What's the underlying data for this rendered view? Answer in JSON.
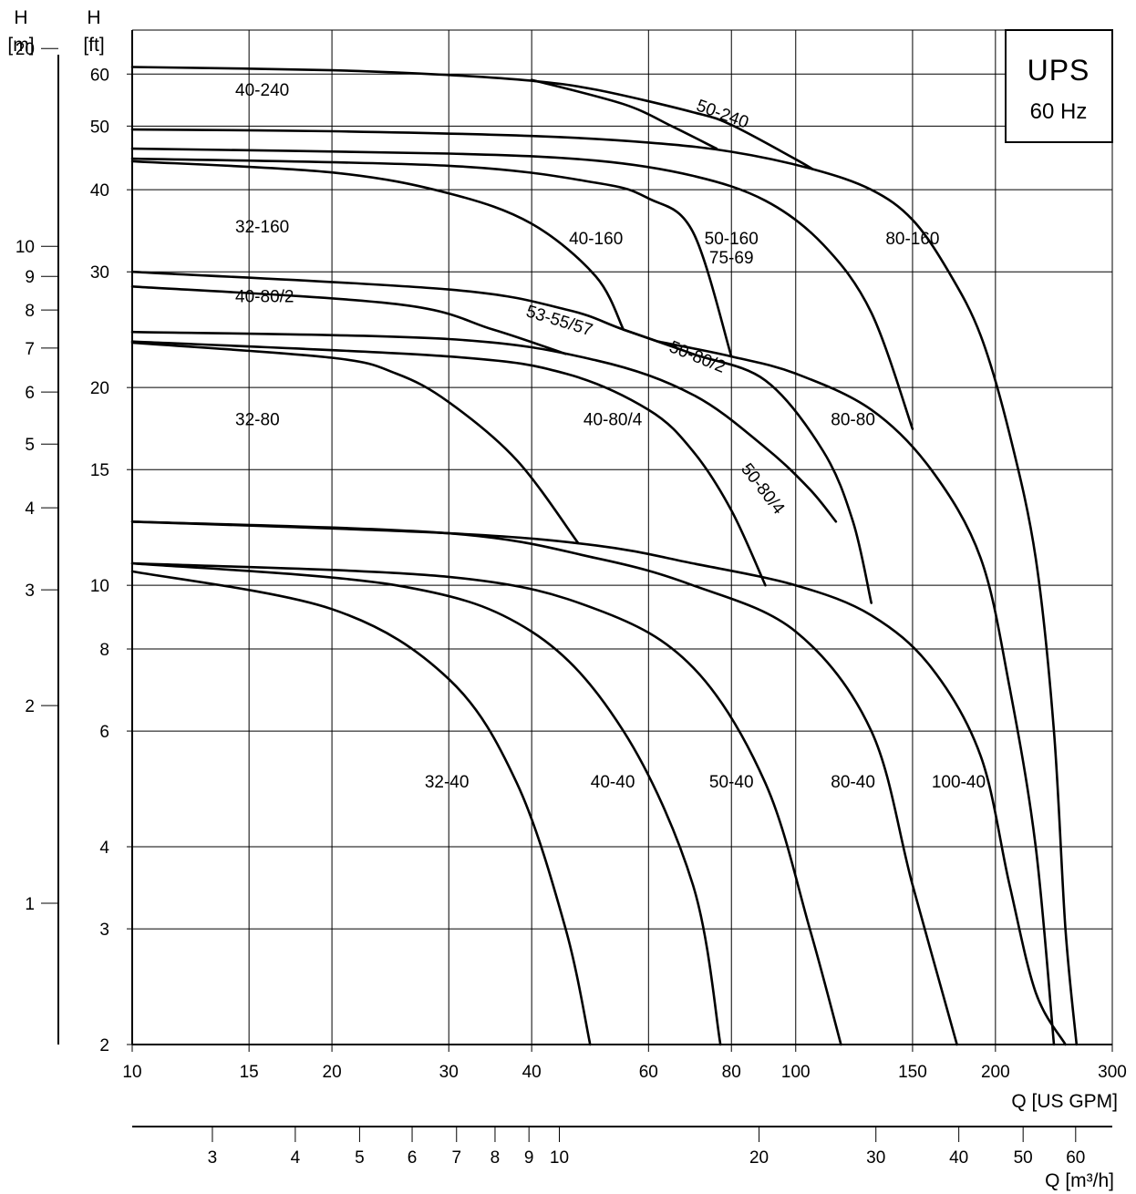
{
  "chart_data": {
    "type": "line",
    "badge": {
      "title": "UPS",
      "subtitle": "60 Hz"
    },
    "axes": {
      "x_gpm": {
        "label": "Q [US GPM]",
        "scale": "log",
        "range": [
          10,
          300
        ],
        "ticks": [
          10,
          15,
          20,
          30,
          40,
          60,
          80,
          100,
          150,
          200,
          300
        ]
      },
      "x_m3h": {
        "label": "Q [m³/h]",
        "scale": "log",
        "ticks": [
          3,
          4,
          5,
          6,
          7,
          8,
          9,
          10,
          20,
          30,
          40,
          50,
          60
        ]
      },
      "y_ft": {
        "label_top": "H",
        "label_unit": "[ft]",
        "scale": "log",
        "range": [
          2,
          70
        ],
        "ticks": [
          2,
          3,
          4,
          6,
          8,
          10,
          15,
          20,
          30,
          40,
          50,
          60
        ]
      },
      "y_m": {
        "label_top": "H",
        "label_unit": "[m]",
        "scale": "log",
        "ticks": [
          1,
          2,
          3,
          4,
          5,
          6,
          7,
          8,
          9,
          10,
          20
        ]
      }
    },
    "grid": true,
    "series": [
      {
        "name": "40-240",
        "points": [
          [
            10,
            61.5
          ],
          [
            20,
            60.8
          ],
          [
            30,
            59.8
          ],
          [
            40,
            58.6
          ],
          [
            50,
            56.8
          ],
          [
            70,
            52.5
          ],
          [
            80,
            50.2
          ],
          [
            100,
            44.5
          ],
          [
            106,
            43
          ]
        ]
      },
      {
        "name": "50-240",
        "points": [
          [
            40,
            58.8
          ],
          [
            55,
            54
          ],
          [
            65,
            50
          ],
          [
            76,
            46.2
          ]
        ]
      },
      {
        "name": "",
        "points": [
          [
            10,
            49.4
          ],
          [
            20,
            49.1
          ],
          [
            40,
            48.3
          ],
          [
            60,
            47.2
          ],
          [
            80,
            45.7
          ],
          [
            106,
            43
          ],
          [
            130,
            40
          ],
          [
            150,
            36
          ],
          [
            170,
            30
          ],
          [
            190,
            24
          ],
          [
            210,
            17
          ],
          [
            230,
            11
          ],
          [
            245,
            6
          ],
          [
            255,
            3
          ],
          [
            265,
            2
          ]
        ]
      },
      {
        "name": "80-160",
        "points": [
          [
            10,
            46.2
          ],
          [
            30,
            45.4
          ],
          [
            50,
            44.3
          ],
          [
            70,
            42
          ],
          [
            90,
            38.5
          ],
          [
            110,
            33
          ],
          [
            130,
            26
          ],
          [
            150,
            17.3
          ]
        ]
      },
      {
        "name": "50-160",
        "points": [
          [
            10,
            44.6
          ],
          [
            30,
            43.5
          ],
          [
            50,
            41
          ],
          [
            60,
            38.8
          ],
          [
            70,
            34.5
          ],
          [
            80,
            22.3
          ]
        ]
      },
      {
        "name": "75-69",
        "points": []
      },
      {
        "name": "40-160",
        "points": [
          [
            10,
            44.2
          ],
          [
            20,
            42.5
          ],
          [
            30,
            39.5
          ],
          [
            40,
            35.5
          ],
          [
            50,
            29.5
          ],
          [
            55,
            24.5
          ]
        ]
      },
      {
        "name": "32-160",
        "points": []
      },
      {
        "name": "53-55/57",
        "points": [
          [
            10,
            30
          ],
          [
            30,
            28.2
          ],
          [
            45,
            26.3
          ],
          [
            55,
            24.5
          ],
          [
            70,
            22.5
          ],
          [
            90,
            20.5
          ],
          [
            110,
            16
          ],
          [
            122,
            12.5
          ],
          [
            130,
            9.4
          ]
        ]
      },
      {
        "name": "40-80/2",
        "points": [
          [
            10,
            28.5
          ],
          [
            25,
            26.8
          ],
          [
            35,
            24.5
          ],
          [
            45,
            22.5
          ]
        ]
      },
      {
        "name": "50-80/2",
        "points": [
          [
            55,
            24.5
          ],
          [
            62,
            23.5
          ]
        ]
      },
      {
        "name": "80-80",
        "points": [
          [
            62,
            23.5
          ],
          [
            80,
            22.3
          ],
          [
            100,
            21
          ],
          [
            130,
            18.5
          ],
          [
            160,
            15
          ],
          [
            190,
            11
          ],
          [
            210,
            7
          ],
          [
            230,
            4
          ],
          [
            245,
            2
          ]
        ]
      },
      {
        "name": "50-80/4",
        "points": [
          [
            10,
            24.3
          ],
          [
            30,
            23.7
          ],
          [
            50,
            22
          ],
          [
            70,
            19.5
          ],
          [
            90,
            16.2
          ],
          [
            105,
            14
          ],
          [
            115,
            12.5
          ]
        ]
      },
      {
        "name": "40-80/4",
        "points": [
          [
            10,
            23.5
          ],
          [
            30,
            22.3
          ],
          [
            45,
            21
          ],
          [
            60,
            18.5
          ],
          [
            70,
            16
          ],
          [
            80,
            13
          ],
          [
            90,
            10
          ]
        ]
      },
      {
        "name": "32-80",
        "points": [
          [
            10,
            23.4
          ],
          [
            20,
            22.2
          ],
          [
            25,
            21
          ],
          [
            30,
            19
          ],
          [
            38,
            15.5
          ],
          [
            47,
            11.6
          ]
        ]
      },
      {
        "name": "100-40",
        "points": [
          [
            10,
            12.5
          ],
          [
            30,
            12
          ],
          [
            50,
            11.5
          ],
          [
            70,
            10.8
          ],
          [
            100,
            10
          ],
          [
            130,
            9
          ],
          [
            160,
            7.5
          ],
          [
            190,
            5.5
          ],
          [
            210,
            3.5
          ],
          [
            230,
            2.4
          ],
          [
            255,
            2
          ]
        ]
      },
      {
        "name": "80-40",
        "points": [
          [
            10,
            12.5
          ],
          [
            30,
            12
          ],
          [
            50,
            11
          ],
          [
            70,
            10
          ],
          [
            100,
            8.5
          ],
          [
            130,
            6
          ],
          [
            150,
            3.5
          ],
          [
            175,
            2
          ]
        ]
      },
      {
        "name": "50-40",
        "points": [
          [
            10,
            10.8
          ],
          [
            30,
            10.3
          ],
          [
            50,
            9.2
          ],
          [
            70,
            7.5
          ],
          [
            90,
            5
          ],
          [
            105,
            3
          ],
          [
            117,
            2
          ]
        ]
      },
      {
        "name": "40-40",
        "points": [
          [
            10,
            10.8
          ],
          [
            25,
            10
          ],
          [
            40,
            8.5
          ],
          [
            55,
            6
          ],
          [
            70,
            3.5
          ],
          [
            77,
            2
          ]
        ]
      },
      {
        "name": "32-40",
        "points": [
          [
            10,
            10.5
          ],
          [
            20,
            9.2
          ],
          [
            30,
            7.2
          ],
          [
            38,
            5
          ],
          [
            45,
            3
          ],
          [
            49,
            2
          ]
        ]
      }
    ],
    "labels": [
      {
        "text": "40-240",
        "x": 14.3,
        "y": 56.5
      },
      {
        "text": "50-240",
        "x": 77.5,
        "y": 52
      },
      {
        "text": "32-160",
        "x": 14.3,
        "y": 35
      },
      {
        "text": "40-160",
        "x": 50,
        "y": 33.6
      },
      {
        "text": "50-160",
        "x": 80,
        "y": 33.6
      },
      {
        "text": "75-69",
        "x": 80,
        "y": 31.4
      },
      {
        "text": "80-160",
        "x": 150,
        "y": 33.6
      },
      {
        "text": "40-80/2",
        "x": 14.3,
        "y": 27.4
      },
      {
        "text": "53-55/57",
        "x": 44,
        "y": 25.2
      },
      {
        "text": "50-80/2",
        "x": 71,
        "y": 22.2
      },
      {
        "text": "32-80",
        "x": 14.3,
        "y": 17.8
      },
      {
        "text": "40-80/4",
        "x": 53,
        "y": 17.8
      },
      {
        "text": "80-80",
        "x": 122,
        "y": 17.8
      },
      {
        "text": "50-80/4",
        "x": 89,
        "y": 14
      },
      {
        "text": "32-40",
        "x": 29.8,
        "y": 5
      },
      {
        "text": "40-40",
        "x": 53,
        "y": 5
      },
      {
        "text": "50-40",
        "x": 80,
        "y": 5
      },
      {
        "text": "80-40",
        "x": 122,
        "y": 5
      },
      {
        "text": "100-40",
        "x": 176,
        "y": 5
      }
    ]
  }
}
